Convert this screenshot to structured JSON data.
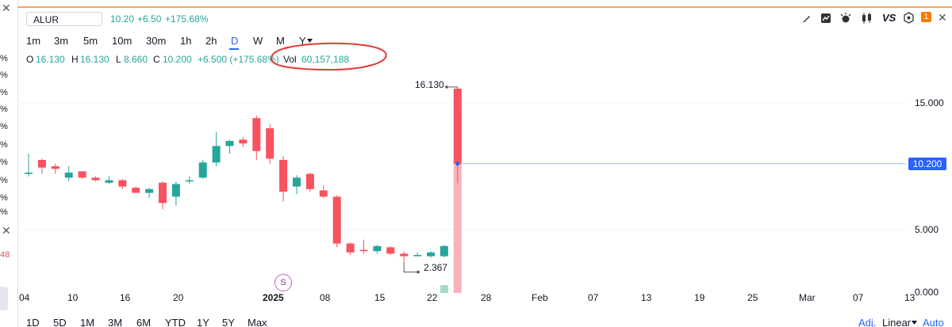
{
  "left_strip": {
    "pct_labels": [
      "%",
      "%",
      "%",
      "%",
      "%",
      "%",
      "%",
      "%",
      "%",
      "%"
    ],
    "red_text": "48"
  },
  "header": {
    "symbol": "ALUR",
    "price": "10.20",
    "change": "+6.50",
    "change_pct": "+175.68%",
    "vs_label": "VS",
    "alert_count": "1"
  },
  "timeframes": [
    "1m",
    "3m",
    "5m",
    "10m",
    "30m",
    "1h",
    "2h",
    "D",
    "W",
    "M",
    "Y"
  ],
  "active_timeframe": "D",
  "ohlc": {
    "o_label": "O",
    "o": "16.130",
    "h_label": "H",
    "h": "16.130",
    "l_label": "L",
    "l": "8.660",
    "c_label": "C",
    "c": "10.200",
    "change": "+6.500 (+175.68%)",
    "vol_label": "Vol",
    "vol": "60,157,188"
  },
  "price_axis": {
    "ticks": [
      "15.000",
      "5.000",
      "0.000"
    ],
    "current": "10.200"
  },
  "time_axis": [
    "04",
    "10",
    "16",
    "20",
    "2025",
    "08",
    "15",
    "22",
    "28",
    "Feb",
    "07",
    "13",
    "19",
    "25",
    "Mar",
    "07",
    "13"
  ],
  "annotations": {
    "high": "16.130",
    "low": "2.367",
    "event_marker": "S"
  },
  "range_bar": {
    "ranges": [
      "1D",
      "5D",
      "1M",
      "3M",
      "6M",
      "YTD",
      "1Y",
      "5Y",
      "Max"
    ],
    "adj": "Adj.",
    "scale": "Linear",
    "auto": "Auto"
  },
  "colors": {
    "up": "#26a69a",
    "down": "#f7525f",
    "accent": "#2962ff",
    "highlight": "#e53935"
  },
  "chart_data": {
    "type": "candlestick",
    "candles": [
      {
        "o": 9.4,
        "h": 11.0,
        "l": 9.2,
        "c": 9.5
      },
      {
        "o": 10.5,
        "h": 10.6,
        "l": 9.4,
        "c": 9.9
      },
      {
        "o": 10.0,
        "h": 10.2,
        "l": 9.4,
        "c": 9.8
      },
      {
        "o": 9.1,
        "h": 10.0,
        "l": 8.8,
        "c": 9.5
      },
      {
        "o": 9.6,
        "h": 9.6,
        "l": 9.0,
        "c": 9.1
      },
      {
        "o": 9.1,
        "h": 9.2,
        "l": 8.8,
        "c": 8.9
      },
      {
        "o": 8.7,
        "h": 9.2,
        "l": 8.6,
        "c": 8.9
      },
      {
        "o": 8.9,
        "h": 9.0,
        "l": 8.2,
        "c": 8.4
      },
      {
        "o": 8.3,
        "h": 8.4,
        "l": 7.9,
        "c": 7.9
      },
      {
        "o": 7.9,
        "h": 8.3,
        "l": 7.5,
        "c": 8.2
      },
      {
        "o": 8.7,
        "h": 8.8,
        "l": 6.6,
        "c": 7.1
      },
      {
        "o": 7.6,
        "h": 8.8,
        "l": 6.9,
        "c": 8.6
      },
      {
        "o": 8.8,
        "h": 9.2,
        "l": 8.6,
        "c": 8.9
      },
      {
        "o": 9.1,
        "h": 10.5,
        "l": 9.0,
        "c": 10.3
      },
      {
        "o": 10.3,
        "h": 12.7,
        "l": 10.0,
        "c": 11.6
      },
      {
        "o": 11.6,
        "h": 12.1,
        "l": 11.0,
        "c": 12.0
      },
      {
        "o": 12.1,
        "h": 12.3,
        "l": 11.5,
        "c": 11.8
      },
      {
        "o": 13.8,
        "h": 14.0,
        "l": 10.5,
        "c": 11.2
      },
      {
        "o": 13.0,
        "h": 13.3,
        "l": 10.2,
        "c": 10.6
      },
      {
        "o": 10.5,
        "h": 10.8,
        "l": 7.2,
        "c": 8.0
      },
      {
        "o": 8.4,
        "h": 9.3,
        "l": 7.8,
        "c": 9.1
      },
      {
        "o": 9.4,
        "h": 9.5,
        "l": 8.0,
        "c": 8.2
      },
      {
        "o": 8.1,
        "h": 8.5,
        "l": 7.5,
        "c": 7.6
      },
      {
        "o": 7.6,
        "h": 7.7,
        "l": 3.6,
        "c": 3.9
      },
      {
        "o": 3.9,
        "h": 4.0,
        "l": 3.0,
        "c": 3.2
      },
      {
        "o": 3.4,
        "h": 4.2,
        "l": 3.1,
        "c": 3.3
      },
      {
        "o": 3.3,
        "h": 3.8,
        "l": 3.1,
        "c": 3.7
      },
      {
        "o": 3.6,
        "h": 3.7,
        "l": 3.0,
        "c": 3.1
      },
      {
        "o": 3.1,
        "h": 3.3,
        "l": 2.4,
        "c": 2.9
      },
      {
        "o": 2.9,
        "h": 3.2,
        "l": 2.9,
        "c": 3.0
      },
      {
        "o": 2.9,
        "h": 3.3,
        "l": 2.8,
        "c": 3.2
      },
      {
        "o": 2.9,
        "h": 3.8,
        "l": 2.8,
        "c": 3.7
      },
      {
        "o": 16.13,
        "h": 16.13,
        "l": 8.66,
        "c": 10.2
      }
    ],
    "volume": [
      0,
      0,
      0,
      0,
      0,
      0,
      0,
      0,
      0,
      0,
      0,
      0,
      0,
      0,
      0,
      0,
      0,
      0,
      0,
      0,
      0,
      0,
      0,
      0,
      0,
      0,
      0,
      0,
      0,
      0,
      0,
      2.6,
      60.16
    ],
    "volume_unit": "millions",
    "ylim": [
      0,
      17
    ],
    "last_price": 10.2
  }
}
